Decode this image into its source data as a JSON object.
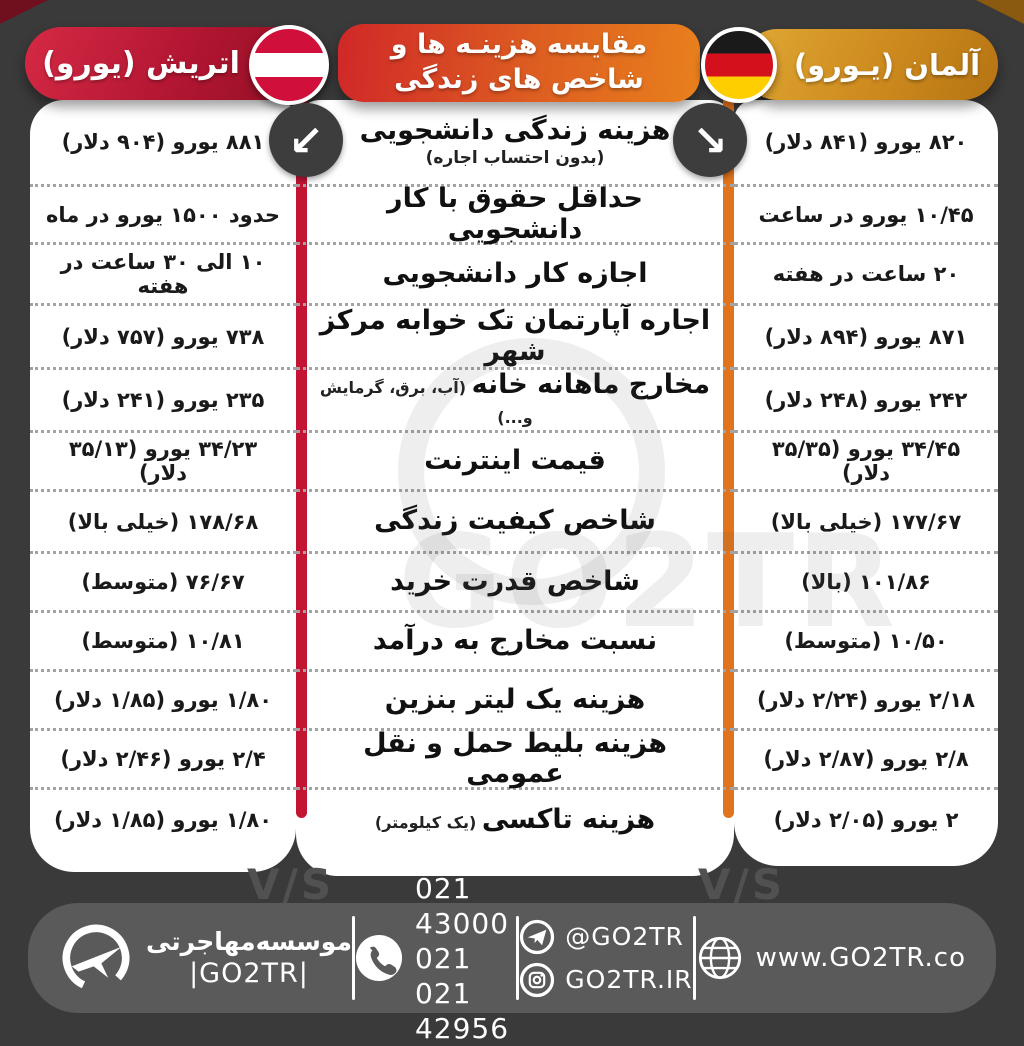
{
  "chart_data": {
    "type": "table",
    "title_line1": "مقایسه هزینـه ها و",
    "title_line2": "شاخص های زندگی",
    "columns": {
      "left": "اتریش (یورو)",
      "right": "آلمان (یـورو)"
    },
    "rows": [
      {
        "label": "هزینه زندگی دانشجویی",
        "sub_block": "(بدون احتساب اجاره)",
        "austria": "۸۸۱ یورو (۹۰۴ دلار)",
        "germany": "۸۲۰ یورو (۸۴۱ دلار)"
      },
      {
        "label": "حداقل حقوق با کار دانشجویی",
        "austria": "حدود ۱۵۰۰ یورو در ماه",
        "germany": "۱۰/۴۵ یورو در ساعت"
      },
      {
        "label": "اجازه کار دانشجویی",
        "austria": "۱۰ الی ۳۰ ساعت در هفته",
        "germany": "۲۰ ساعت در هفته"
      },
      {
        "label": "اجاره آپارتمان تک خوابه مرکز شهر",
        "austria": "۷۳۸ یورو (۷۵۷ دلار)",
        "germany": "۸۷۱ یورو (۸۹۴ دلار)"
      },
      {
        "label": "مخارج ماهانه خانه",
        "sub_inline": "(آب، برق، گرمایش و...)",
        "austria": "۲۳۵ یورو (۲۴۱ دلار)",
        "germany": "۲۴۲ یورو (۲۴۸ دلار)"
      },
      {
        "label": "قیمت اینترنت",
        "austria": "۳۴/۲۳ یورو (۳۵/۱۳ دلار)",
        "germany": "۳۴/۴۵ یورو (۳۵/۳۵ دلار)"
      },
      {
        "label": "شاخص کیفیت زندگی",
        "austria": "۱۷۸/۶۸ (خیلی بالا)",
        "germany": "۱۷۷/۶۷ (خیلی بالا)"
      },
      {
        "label": "شاخص قدرت خرید",
        "austria": "۷۶/۶۷ (متوسط)",
        "germany": "۱۰۱/۸۶ (بالا)"
      },
      {
        "label": "نسبت مخارج به درآمد",
        "austria": "۱۰/۸۱ (متوسط)",
        "germany": "۱۰/۵۰ (متوسط)"
      },
      {
        "label": "هزینه یک لیتر بنزین",
        "austria": "۱/۸۰ یورو (۱/۸۵ دلار)",
        "germany": "۲/۱۸ یورو (۲/۲۴ دلار)"
      },
      {
        "label": "هزینه بلیط حمل و نقل عمومی",
        "austria": "۲/۴ یورو (۲/۴۶ دلار)",
        "germany": "۲/۸ یورو (۲/۸۷ دلار)"
      },
      {
        "label": "هزینه تاکسی",
        "sub_inline": "(یک کیلومتر)",
        "austria": "۱/۸۰ یورو (۱/۸۵ دلار)",
        "germany": "۲ یورو (۲/۰۵ دلار)"
      }
    ]
  },
  "icons": {
    "arrow_left": "↙",
    "arrow_right": "↘"
  },
  "vs_label": "V/S",
  "watermark": "GO2TR",
  "footer": {
    "org_name": "موسسه‌مهاجرتی",
    "org_handle": "|GO2TR|",
    "phone1": "021 43000 021",
    "phone2": "021 42956",
    "telegram": "@GO2TR",
    "instagram": "GO2TR.IR",
    "website": "www.GO2TR.co"
  },
  "colors": {
    "background": "#3a3a3a",
    "austria_red": "#b01530",
    "germany_gold": "#cd8a1e",
    "header_red": "#d02828",
    "header_orange": "#e8801c",
    "stripe_red": "#c41434",
    "stripe_orange": "#e0731c",
    "footer_gray": "#5a5a5a",
    "flag_austria_red": "#d0103a",
    "flag_germany_black": "#1a1a1a",
    "flag_germany_red": "#d5101d",
    "flag_germany_gold": "#ffce00"
  }
}
